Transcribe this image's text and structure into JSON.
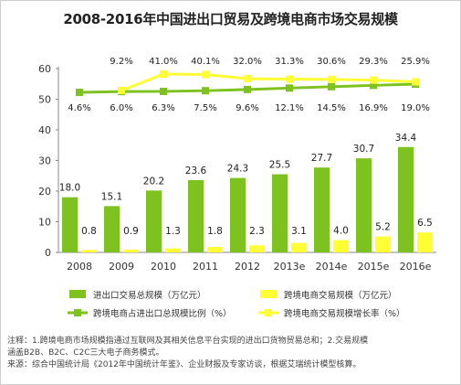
{
  "chart_data": {
    "type": "bar",
    "title": "2008-2016年中国进出口贸易及跨境电商市场交易规模",
    "categories": [
      "2008",
      "2009",
      "2010",
      "2011",
      "2012",
      "2013e",
      "2014e",
      "2015e",
      "2016e"
    ],
    "ylim": [
      0,
      60
    ],
    "yticks": [
      0,
      10,
      20,
      30,
      40,
      50,
      60
    ],
    "grid": false,
    "legend_position": "bottom",
    "series": [
      {
        "name": "进出口交易总规模（万亿元）",
        "type": "bar",
        "color": "#7dc21e",
        "values": [
          18.0,
          15.1,
          20.2,
          23.6,
          24.3,
          25.5,
          27.7,
          30.7,
          34.4
        ],
        "labels": [
          "18.0",
          "15.1",
          "20.2",
          "23.6",
          "24.3",
          "25.5",
          "27.7",
          "30.7",
          "34.4"
        ]
      },
      {
        "name": "跨境电商交易规模（万亿元）",
        "type": "bar",
        "color": "#ffff33",
        "values": [
          0.8,
          0.9,
          1.3,
          1.8,
          2.3,
          3.1,
          4.0,
          5.2,
          6.5
        ],
        "labels": [
          "0.8",
          "0.9",
          "1.3",
          "1.8",
          "2.3",
          "3.1",
          "4.0",
          "5.2",
          "6.5"
        ]
      },
      {
        "name": "跨境电商占进出口总规模比例（%）",
        "type": "line",
        "color": "#7dc21e",
        "values": [
          4.6,
          6.0,
          6.3,
          7.5,
          9.6,
          12.1,
          14.5,
          16.9,
          19.0
        ],
        "labels": [
          "4.6%",
          "6.0%",
          "6.3%",
          "7.5%",
          "9.6%",
          "12.1%",
          "14.5%",
          "16.9%",
          "19.0%"
        ]
      },
      {
        "name": "跨境电商交易规模增长率（%）",
        "type": "line",
        "color": "#ffff33",
        "values": [
          null,
          9.2,
          41.0,
          40.1,
          32.0,
          31.3,
          30.6,
          29.3,
          25.9
        ],
        "labels": [
          "",
          "9.2%",
          "41.0%",
          "40.1%",
          "32.0%",
          "31.3%",
          "30.6%",
          "29.3%",
          "25.9%"
        ]
      }
    ]
  },
  "notes": {
    "line1": "注释：1.跨境电商市场规模指通过互联网及其相关信息平台实现的进出口货物贸易总和；2.交易规模",
    "line2": "涵盖B2B、B2C、C2C三大电子商务模式。",
    "line3": "来源：综合中国统计局《2012年中国统计年鉴》、企业财报及专家访谈，根据艾瑞统计模型核算。"
  }
}
